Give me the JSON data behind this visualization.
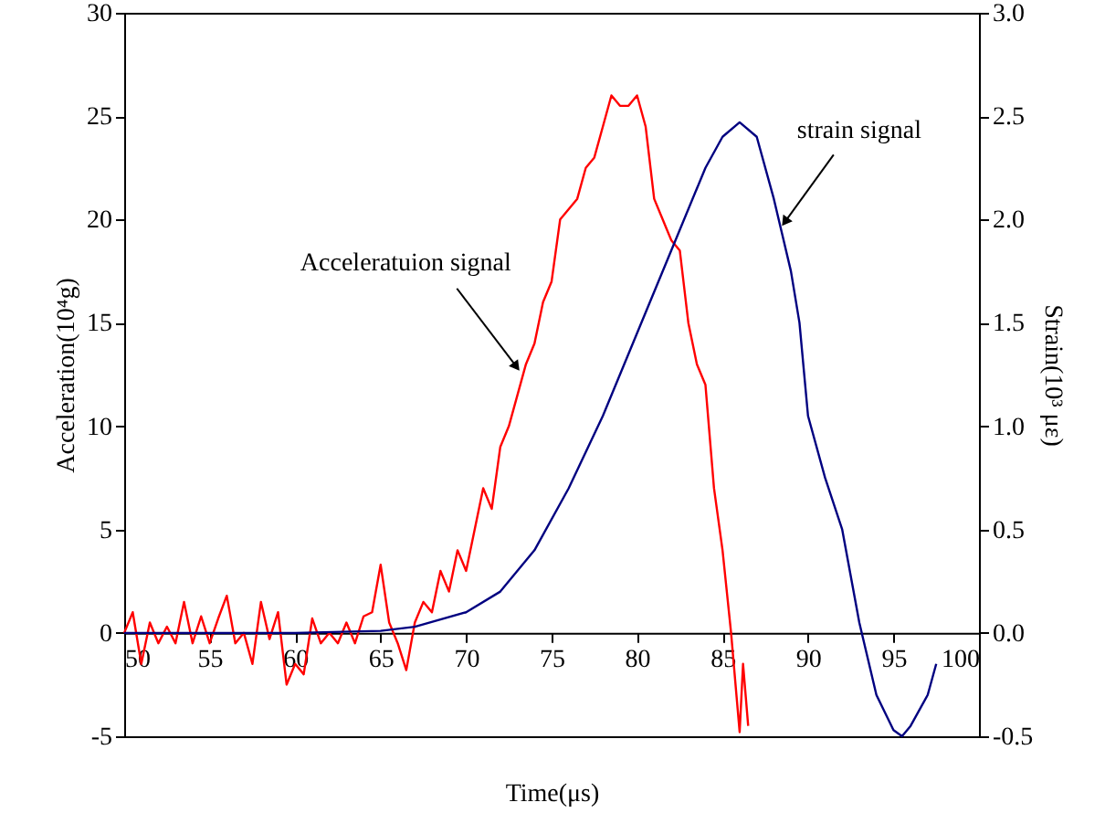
{
  "chart_data": {
    "type": "line",
    "xlabel": "Time(μs)",
    "ylabel": "Acceleration(10⁴g)",
    "y2label": "Strain(10³ με)",
    "xlim": [
      50,
      100
    ],
    "xticks": [
      50,
      55,
      60,
      65,
      70,
      75,
      80,
      85,
      90,
      95,
      100
    ],
    "ylim": [
      -5,
      30
    ],
    "yticks": [
      -5,
      0,
      5,
      10,
      15,
      20,
      25,
      30
    ],
    "y2lim": [
      -0.5,
      3.0
    ],
    "y2ticks": [
      -0.5,
      {
        "value": 0,
        "label": "0.0"
      },
      0.5,
      {
        "value": 1,
        "label": "1.0"
      },
      1.5,
      {
        "value": 2,
        "label": "2.0"
      },
      2.5,
      {
        "value": 3,
        "label": "3.0"
      }
    ],
    "grid": false,
    "annotations": [
      {
        "text": "Acceleratuion signal",
        "x": 73.2,
        "y": 12.6
      },
      {
        "text": "strain signal",
        "x": 88.4,
        "y": 19.6
      }
    ],
    "series": [
      {
        "color": "#ff0000",
        "x": [
          50,
          50.5,
          51,
          51.5,
          52,
          52.5,
          53,
          53.5,
          54,
          54.5,
          55,
          55.5,
          56,
          56.5,
          57,
          57.5,
          58,
          58.5,
          59,
          59.5,
          60,
          60.5,
          61,
          61.5,
          62,
          62.5,
          63,
          63.5,
          64,
          64.5,
          65,
          65.5,
          66,
          66.5,
          67,
          67.5,
          68,
          68.5,
          69,
          69.5,
          70,
          70.5,
          71,
          71.5,
          72,
          72.5,
          73,
          73.5,
          74,
          74.5,
          75,
          75.5,
          76,
          76.5,
          77,
          77.5,
          78,
          78.5,
          79,
          79.5,
          80,
          80.5,
          81,
          81.5,
          82,
          82.5,
          83,
          83.5,
          84,
          84.5,
          85,
          85.5,
          86,
          86.2,
          86.5
        ],
        "values": [
          0,
          1,
          -1.5,
          0.5,
          -0.5,
          0.3,
          -0.5,
          1.5,
          -0.5,
          0.8,
          -0.5,
          0.7,
          1.8,
          -0.5,
          0,
          -1.5,
          1.5,
          -0.3,
          1,
          -2.5,
          -1.5,
          -2,
          0.7,
          -0.5,
          0,
          -0.5,
          0.5,
          -0.5,
          0.8,
          1,
          3.3,
          0.5,
          -0.5,
          -1.8,
          0.5,
          1.5,
          1,
          3,
          2,
          4,
          3,
          5,
          7,
          6,
          9,
          10,
          11.5,
          13,
          14,
          16,
          17,
          20,
          20.5,
          21,
          22.5,
          23,
          24.5,
          26,
          25.5,
          25.5,
          26,
          24.5,
          21,
          20,
          19,
          18.5,
          15,
          13,
          12,
          7,
          4,
          0,
          -4.8,
          -1.5,
          -4.5
        ]
      },
      {
        "color": "#000080",
        "axis": "y2",
        "x": [
          50,
          55,
          60,
          65,
          67,
          70,
          72,
          74,
          76,
          78,
          80,
          82,
          84,
          85,
          86,
          87,
          88,
          89,
          89.5,
          90,
          91,
          92,
          93,
          94,
          95,
          95.5,
          96,
          97,
          97.5
        ],
        "values": [
          0,
          0,
          0,
          0.01,
          0.03,
          0.1,
          0.2,
          0.4,
          0.7,
          1.05,
          1.45,
          1.85,
          2.25,
          2.4,
          2.47,
          2.4,
          2.1,
          1.75,
          1.5,
          1.05,
          0.75,
          0.5,
          0.05,
          -0.3,
          -0.47,
          -0.5,
          -0.45,
          -0.3,
          -0.15
        ]
      }
    ]
  }
}
